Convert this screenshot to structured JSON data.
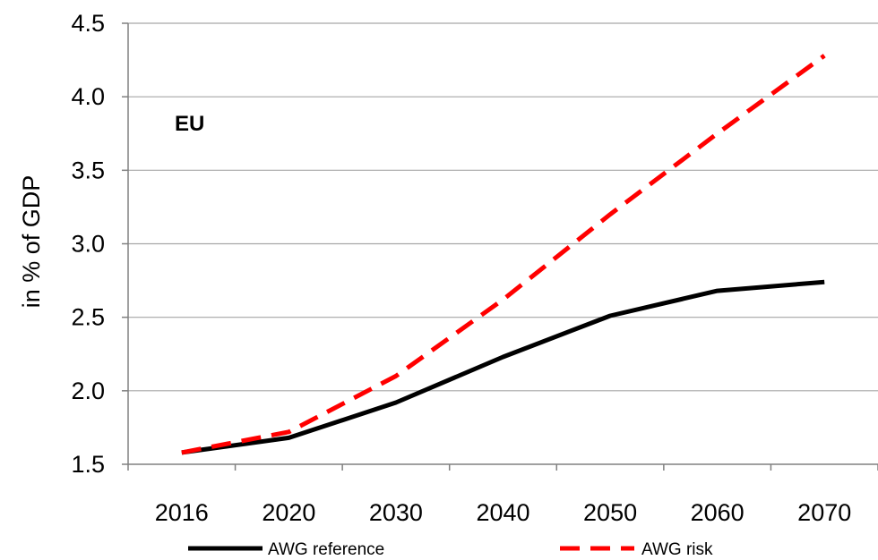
{
  "chart_data": {
    "type": "line",
    "categories": [
      "2016",
      "2020",
      "2030",
      "2040",
      "2050",
      "2060",
      "2070"
    ],
    "ylabel": "in % of GDP",
    "ylim": [
      1.5,
      4.5
    ],
    "yticks": [
      "1.5",
      "2.0",
      "2.5",
      "3.0",
      "3.5",
      "4.0",
      "4.5"
    ],
    "annotation": "EU",
    "grid": "horizontal",
    "legend_position": "bottom",
    "series": [
      {
        "name": "AWG reference",
        "color": "#000000",
        "style": "solid",
        "values": [
          1.58,
          1.68,
          1.92,
          2.23,
          2.51,
          2.68,
          2.74
        ]
      },
      {
        "name": "AWG risk",
        "color": "#ff0000",
        "style": "dashed",
        "values": [
          1.58,
          1.72,
          2.1,
          2.62,
          3.2,
          3.75,
          4.28
        ]
      }
    ]
  }
}
